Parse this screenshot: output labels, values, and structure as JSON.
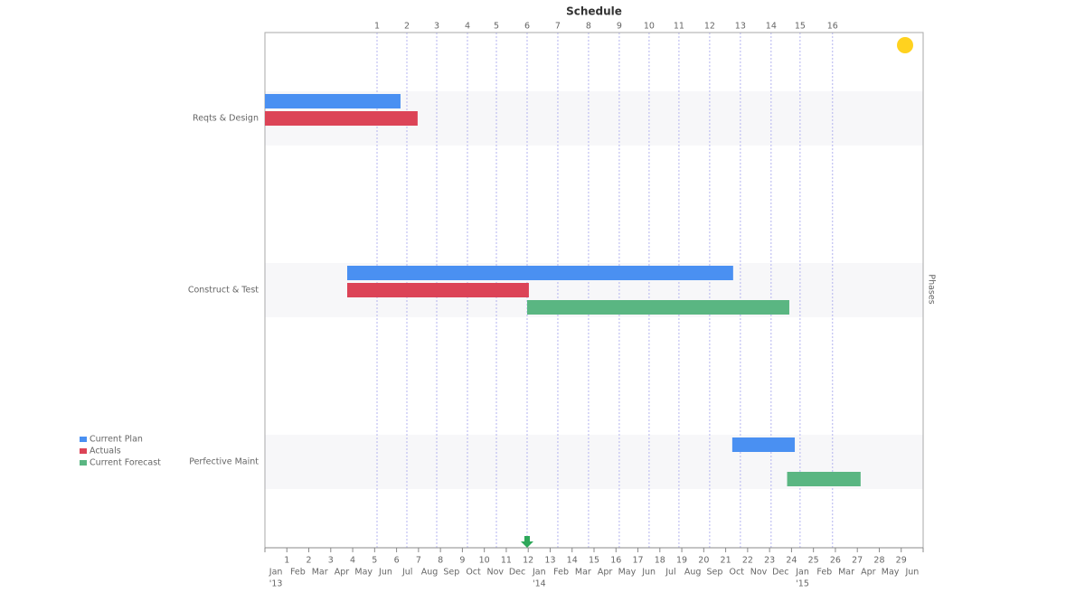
{
  "chart_data": {
    "type": "gantt",
    "title": "Schedule",
    "y2_label": "Phases",
    "categories": [
      "Reqts & Design",
      "Construct & Test",
      "Perfective Maint"
    ],
    "series": [
      {
        "name": "Current Plan",
        "color": "#4a90f2",
        "values": [
          [
            0,
            6.18
          ],
          [
            3.75,
            21.34
          ],
          [
            21.3,
            24.15
          ]
        ]
      },
      {
        "name": "Actuals",
        "color": "#dc4457",
        "values": [
          [
            0,
            6.96
          ],
          [
            3.75,
            12.03
          ],
          null
        ]
      },
      {
        "name": "Current Forecast",
        "color": "#5ab682",
        "values": [
          null,
          [
            11.95,
            23.9
          ],
          [
            23.8,
            27.15
          ]
        ]
      }
    ],
    "xlim": [
      0,
      30
    ],
    "xticks": [
      1,
      2,
      3,
      4,
      5,
      6,
      7,
      8,
      9,
      10,
      11,
      12,
      13,
      14,
      15,
      16,
      17,
      18,
      19,
      20,
      21,
      22,
      23,
      24,
      25,
      26,
      27,
      28,
      29
    ],
    "x_months": [
      "Jan",
      "Feb",
      "Mar",
      "Apr",
      "May",
      "Jun",
      "Jul",
      "Aug",
      "Sep",
      "Oct",
      "Nov",
      "Dec",
      "Jan",
      "Feb",
      "Mar",
      "Apr",
      "May",
      "Jun",
      "Jul",
      "Aug",
      "Sep",
      "Oct",
      "Nov",
      "Dec",
      "Jan",
      "Feb",
      "Mar",
      "Apr",
      "May",
      "Jun"
    ],
    "x_years": [
      {
        "value": 0,
        "label": "'13"
      },
      {
        "value": 12,
        "label": "'14"
      },
      {
        "value": 24,
        "label": "'15"
      }
    ],
    "top_ticks": [
      {
        "value": 5.11,
        "label": "1"
      },
      {
        "value": 6.47,
        "label": "2"
      },
      {
        "value": 7.83,
        "label": "3"
      },
      {
        "value": 9.23,
        "label": "4"
      },
      {
        "value": 10.55,
        "label": "5"
      },
      {
        "value": 11.95,
        "label": "6"
      },
      {
        "value": 13.35,
        "label": "7"
      },
      {
        "value": 14.75,
        "label": "8"
      },
      {
        "value": 16.15,
        "label": "9"
      },
      {
        "value": 17.51,
        "label": "10"
      },
      {
        "value": 18.87,
        "label": "11"
      },
      {
        "value": 20.27,
        "label": "12"
      },
      {
        "value": 21.67,
        "label": "13"
      },
      {
        "value": 23.07,
        "label": "14"
      },
      {
        "value": 24.39,
        "label": "15"
      },
      {
        "value": 25.87,
        "label": "16"
      }
    ],
    "today": 11.95,
    "grid": true
  }
}
